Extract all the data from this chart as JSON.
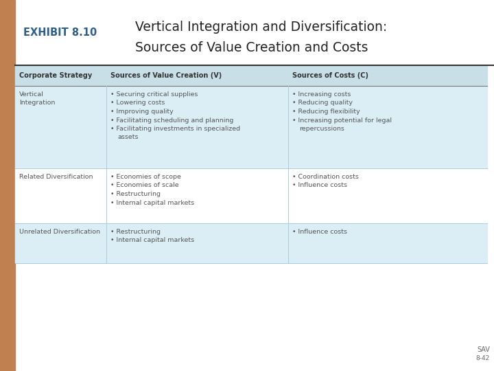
{
  "title_line1": "Vertical Integration and Diversification:",
  "title_line2": "Sources of Value Creation and Costs",
  "exhibit_label": "EXHIBIT 8.10",
  "footer_text": "SAV",
  "footer_subtext": "8-42",
  "exhibit_color": "#C08050",
  "exhibit_text_color": "#2E5F8A",
  "title_color": "#222222",
  "header_bg": "#C8DFE8",
  "row1_bg": "#DCEEf5",
  "row2_bg": "#FFFFFF",
  "row3_bg": "#DCEEf5",
  "line_color": "#AACCDD",
  "text_color": "#555555",
  "col_headers": [
    "Corporate Strategy",
    "Sources of Value Creation (V)",
    "Sources of Costs (C)"
  ],
  "rows": [
    {
      "strategy": "Vertical\nIntegration",
      "value_creation": [
        "Securing critical supplies",
        "Lowering costs",
        "Improving quality",
        "Facilitating scheduling and planning",
        "Facilitating investments in specialized",
        "  assets"
      ],
      "costs": [
        "Increasing costs",
        "Reducing quality",
        "Reducing flexibility",
        "Increasing potential for legal",
        "  repercussions"
      ]
    },
    {
      "strategy": "Related Diversification",
      "value_creation": [
        "Economies of scope",
        "Economies of scale",
        "Restructuring",
        "Internal capital markets"
      ],
      "costs": [
        "Coordination costs",
        "Influence costs"
      ]
    },
    {
      "strategy": "Unrelated Diversification",
      "value_creation": [
        "Restructuring",
        "Internal capital markets"
      ],
      "costs": [
        "Influence costs"
      ]
    }
  ]
}
